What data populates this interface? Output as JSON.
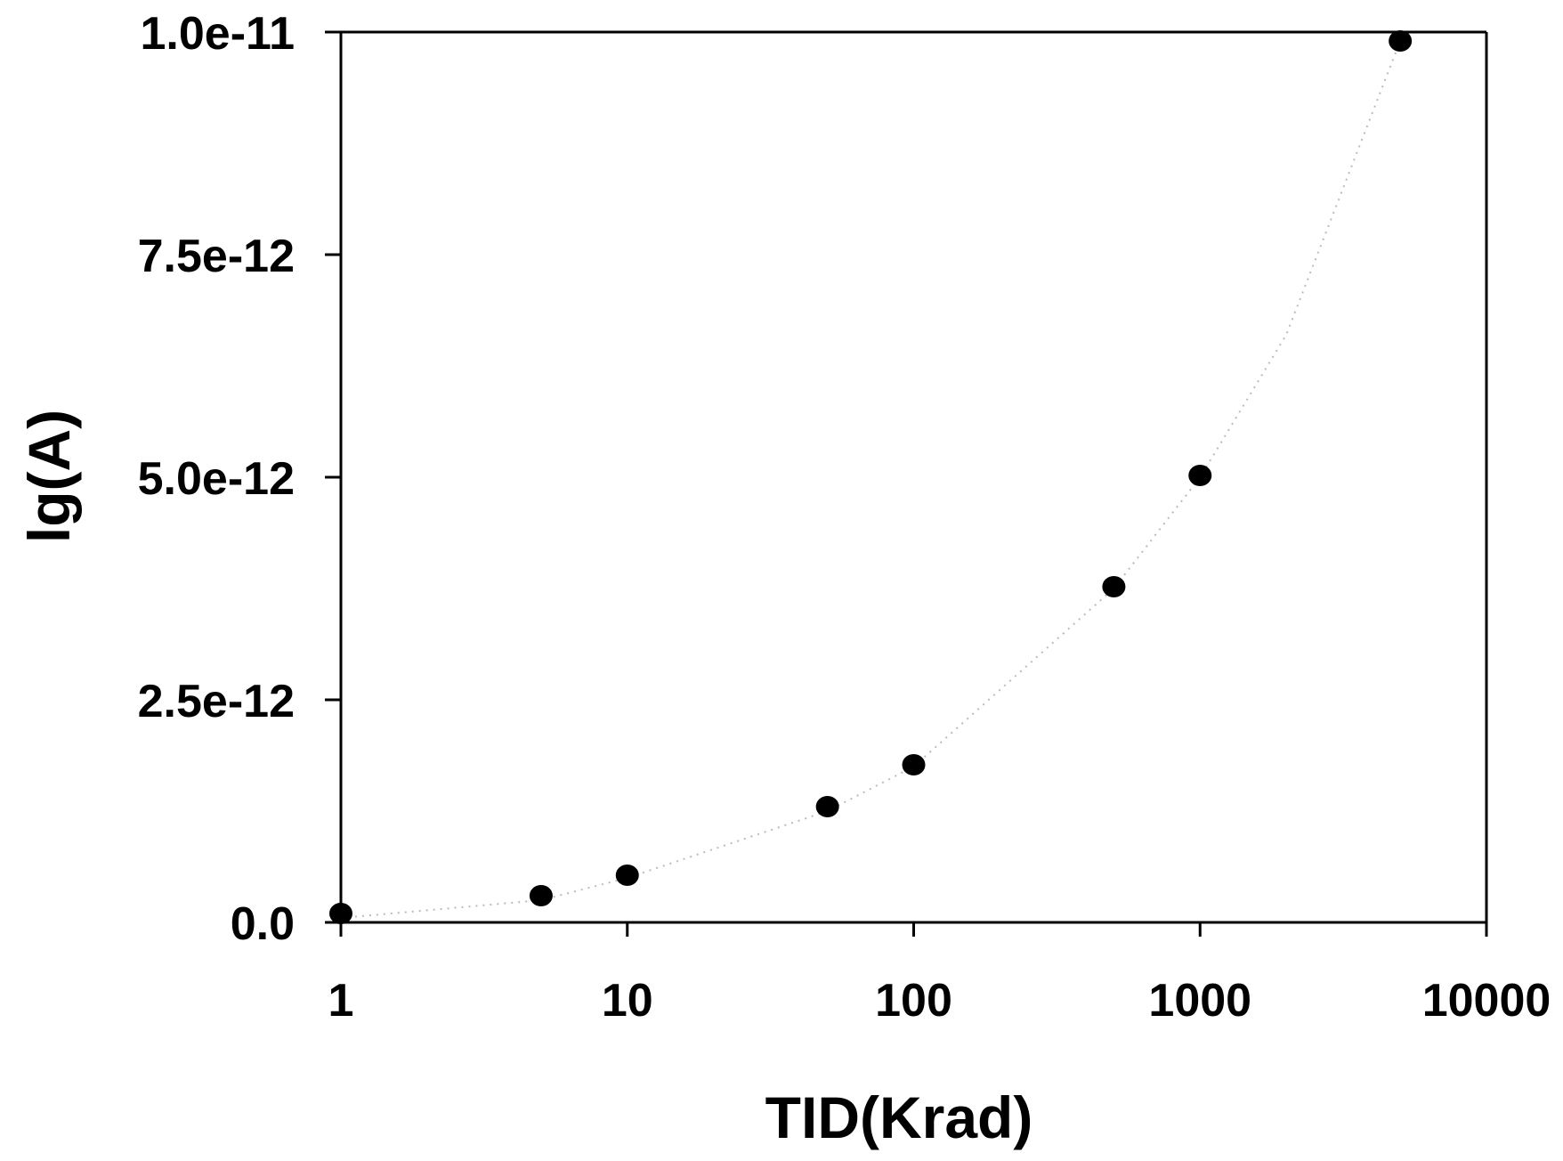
{
  "chart_data": {
    "type": "scatter",
    "title": "",
    "xlabel": "TID(Krad)",
    "ylabel": "lg(A)",
    "x_scale": "log",
    "xlim": [
      1,
      10000
    ],
    "ylim": [
      0,
      1e-11
    ],
    "x_ticks": [
      1,
      10,
      100,
      1000,
      10000
    ],
    "x_tick_labels": [
      "1",
      "10",
      "100",
      "1000",
      "10000"
    ],
    "y_ticks": [
      0,
      2.5e-12,
      5e-12,
      7.5e-12,
      1e-11
    ],
    "y_tick_labels": [
      "0.0",
      "2.5e-12",
      "5.0e-12",
      "7.5e-12",
      "1.0e-11"
    ],
    "grid": false,
    "legend": "none",
    "series": [
      {
        "marker": "filled-circle",
        "color": "#000000",
        "x": [
          1,
          5,
          10,
          50,
          100,
          500,
          1000,
          5000
        ],
        "y": [
          1e-13,
          3e-13,
          5.3e-13,
          1.3e-12,
          1.77e-12,
          3.77e-12,
          5.02e-12,
          9.9e-12
        ]
      }
    ],
    "fit_curve": {
      "style": "dotted",
      "color": "#bbbbbb",
      "x": [
        1,
        5,
        10,
        50,
        100,
        500,
        1000,
        2000,
        5000
      ],
      "y": [
        5e-14,
        2.5e-13,
        5e-13,
        1.25e-12,
        1.75e-12,
        3.75e-12,
        5e-12,
        6.6e-12,
        9.9e-12
      ]
    }
  }
}
